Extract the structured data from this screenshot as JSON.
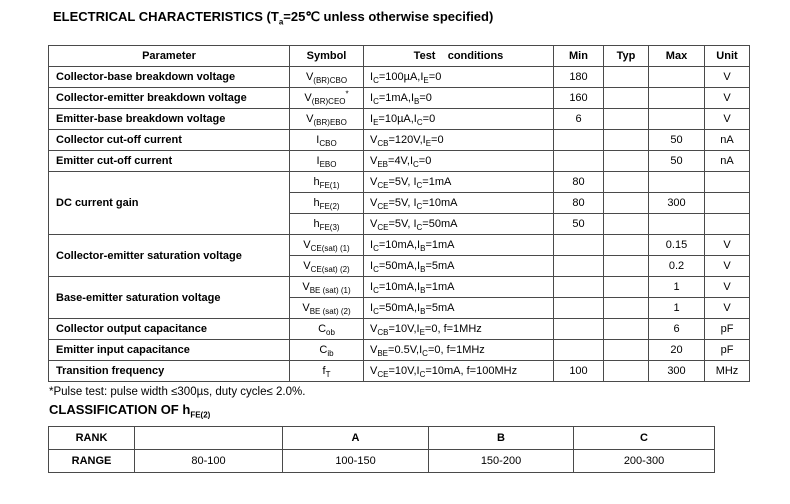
{
  "title": "ELECTRICAL CHARACTERISTICS (T_{a}=25℃ unless otherwise specified)",
  "table": {
    "headers": {
      "parameter": "Parameter",
      "symbol": "Symbol",
      "test_conditions": "Test    conditions",
      "min": "Min",
      "typ": "Typ",
      "max": "Max",
      "unit": "Unit"
    },
    "rows": [
      {
        "param": "Collector-base breakdown voltage",
        "symbol": "V_{(BR)CBO}",
        "conditions": "I_{C}=100µA,I_{E}=0",
        "min": "180",
        "typ": "",
        "max": "",
        "unit": "V"
      },
      {
        "param": "Collector-emitter breakdown voltage",
        "symbol": "V_{(BR)CEO}^{*}",
        "conditions": "I_{C}=1mA,I_{B}=0",
        "min": "160",
        "typ": "",
        "max": "",
        "unit": "V"
      },
      {
        "param": "Emitter-base breakdown voltage",
        "symbol": "V_{(BR)EBO}",
        "conditions": "I_{E}=10µA,I_{C}=0",
        "min": "6",
        "typ": "",
        "max": "",
        "unit": "V"
      },
      {
        "param": "Collector cut-off current",
        "symbol": "I_{CBO}",
        "conditions": "V_{CB}=120V,I_{E}=0",
        "min": "",
        "typ": "",
        "max": "50",
        "unit": "nA"
      },
      {
        "param": "Emitter cut-off current",
        "symbol": "I_{EBO}",
        "conditions": "V_{EB}=4V,I_{C}=0",
        "min": "",
        "typ": "",
        "max": "50",
        "unit": "nA"
      },
      {
        "param": "DC current gain",
        "symbol": "h_{FE(1)}",
        "conditions": "V_{CE}=5V, I_{C}=1mA",
        "min": "80",
        "typ": "",
        "max": "",
        "unit": ""
      },
      {
        "symbol": "h_{FE(2)}",
        "conditions": "V_{CE}=5V, I_{C}=10mA",
        "min": "80",
        "typ": "",
        "max": "300",
        "unit": ""
      },
      {
        "symbol": "h_{FE(3)}",
        "conditions": "V_{CE}=5V, I_{C}=50mA",
        "min": "50",
        "typ": "",
        "max": "",
        "unit": ""
      },
      {
        "param": "Collector-emitter saturation voltage",
        "symbol": "V_{CE(sat) (1)}",
        "conditions": "I_{C}=10mA,I_{B}=1mA",
        "min": "",
        "typ": "",
        "max": "0.15",
        "unit": "V"
      },
      {
        "symbol": "V_{CE(sat) (2)}",
        "conditions": "I_{C}=50mA,I_{B}=5mA",
        "min": "",
        "typ": "",
        "max": "0.2",
        "unit": "V"
      },
      {
        "param": "Base-emitter saturation voltage",
        "symbol": "V_{BE (sat) (1)}",
        "conditions": "I_{C}=10mA,I_{B}=1mA",
        "min": "",
        "typ": "",
        "max": "1",
        "unit": "V"
      },
      {
        "symbol": "V_{BE (sat) (2)}",
        "conditions": "I_{C}=50mA,I_{B}=5mA",
        "min": "",
        "typ": "",
        "max": "1",
        "unit": "V"
      },
      {
        "param": "Collector output capacitance",
        "symbol": "C_{ob}",
        "conditions": "V_{CB}=10V,I_{E}=0, f=1MHz",
        "min": "",
        "typ": "",
        "max": "6",
        "unit": "pF"
      },
      {
        "param": "Emitter input capacitance",
        "symbol": "C_{ib}",
        "conditions": "V_{BE}=0.5V,I_{C}=0, f=1MHz",
        "min": "",
        "typ": "",
        "max": "20",
        "unit": "pF"
      },
      {
        "param": "Transition frequency",
        "symbol": "f_{T}",
        "conditions": "V_{CE}=10V,I_{C}=10mA, f=100MHz",
        "min": "100",
        "typ": "",
        "max": "300",
        "unit": "MHz"
      }
    ]
  },
  "footnote": "*Pulse test: pulse width ≤300µs, duty cycle≤ 2.0%.",
  "classification": {
    "heading": "CLASSIFICATION OF h_{FE(2)}",
    "rank_label": "RANK",
    "range_label": "RANGE",
    "columns": [
      {
        "rank": "",
        "range": "80-100"
      },
      {
        "rank": "A",
        "range": "100-150"
      },
      {
        "rank": "B",
        "range": "150-200"
      },
      {
        "rank": "C",
        "range": "200-300"
      }
    ]
  }
}
